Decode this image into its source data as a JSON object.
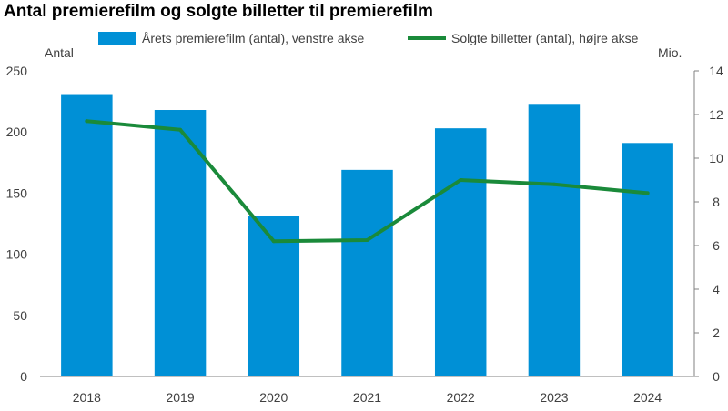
{
  "chart_data": {
    "type": "bar",
    "title": "Antal premierefilm og solgte billetter til premierefilm",
    "categories": [
      "2018",
      "2019",
      "2020",
      "2021",
      "2022",
      "2023",
      "2024"
    ],
    "series": [
      {
        "name": "Årets premierefilm (antal), venstre akse",
        "type": "bar",
        "axis": "left",
        "color": "#0090d6",
        "values": [
          231,
          218,
          131,
          169,
          203,
          223,
          191
        ]
      },
      {
        "name": "Solgte billetter (antal), højre akse",
        "type": "line",
        "axis": "right",
        "color": "#1a8a3a",
        "values": [
          11.7,
          11.3,
          6.2,
          6.25,
          9.0,
          8.8,
          8.4
        ]
      }
    ],
    "left_axis": {
      "label": "Antal",
      "ylim": [
        0,
        250
      ],
      "ticks": [
        0,
        50,
        100,
        150,
        200,
        250
      ]
    },
    "right_axis": {
      "label": "Mio.",
      "ylim": [
        0,
        14
      ],
      "ticks": [
        0,
        2,
        4,
        6,
        8,
        10,
        12,
        14
      ]
    },
    "grid": false,
    "legend": "top"
  }
}
